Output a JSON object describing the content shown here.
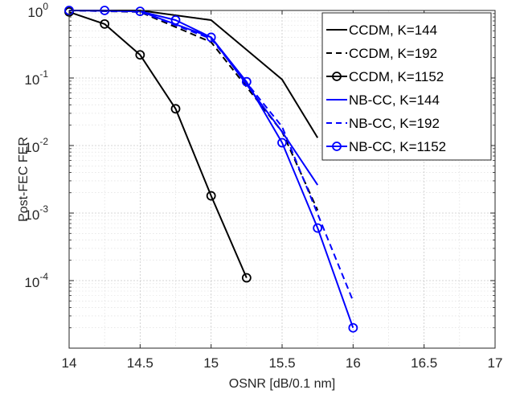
{
  "chart_data": {
    "type": "line",
    "title": "",
    "xlabel": "OSNR [dB/0.1 nm]",
    "ylabel": "Post-FEC FER",
    "xlim": [
      14,
      17
    ],
    "ylim": [
      1e-05,
      1
    ],
    "yscale": "log",
    "grid": true,
    "minor_grid": true,
    "legend_position": "top-right",
    "x_ticks": [
      "14",
      "14.5",
      "15",
      "15.5",
      "16",
      "16.5",
      "17"
    ],
    "x_tick_values": [
      14,
      14.5,
      15,
      15.5,
      16,
      16.5,
      17
    ],
    "y_ticks": [
      {
        "value": 1,
        "base": "10",
        "exp": "0"
      },
      {
        "value": 0.1,
        "base": "10",
        "exp": "-1"
      },
      {
        "value": 0.01,
        "base": "10",
        "exp": "-2"
      },
      {
        "value": 0.001,
        "base": "10",
        "exp": "-3"
      },
      {
        "value": 0.0001,
        "base": "10",
        "exp": "-4"
      }
    ],
    "series": [
      {
        "name": "CCDM, K=144",
        "color": "#000000",
        "dash": "solid",
        "marker": "none",
        "x": [
          14,
          14.5,
          15,
          15.5,
          15.75
        ],
        "y": [
          1.0,
          1.0,
          0.72,
          0.095,
          0.013
        ]
      },
      {
        "name": "CCDM, K=192",
        "color": "#000000",
        "dash": "dashed",
        "marker": "none",
        "x": [
          14,
          14.5,
          15,
          15.5,
          15.75
        ],
        "y": [
          1.0,
          0.95,
          0.34,
          0.016,
          0.0011
        ]
      },
      {
        "name": "CCDM, K=1152",
        "color": "#000000",
        "dash": "solid",
        "marker": "circle",
        "x": [
          14,
          14.25,
          14.5,
          14.75,
          15,
          15.25
        ],
        "y": [
          0.95,
          0.63,
          0.22,
          0.035,
          0.0018,
          0.00011
        ]
      },
      {
        "name": "NB-CC, K=144",
        "color": "#0000ff",
        "dash": "solid",
        "marker": "none",
        "x": [
          14,
          14.5,
          15,
          15.5,
          15.75
        ],
        "y": [
          1.0,
          0.97,
          0.4,
          0.016,
          0.0026
        ]
      },
      {
        "name": "NB-CC, K=192",
        "color": "#0000ff",
        "dash": "dashed",
        "marker": "none",
        "x": [
          14,
          14.5,
          15,
          15.5,
          16
        ],
        "y": [
          1.0,
          0.96,
          0.38,
          0.019,
          5e-05
        ]
      },
      {
        "name": "NB-CC, K=1152",
        "color": "#0000ff",
        "dash": "solid",
        "marker": "circle",
        "x": [
          14,
          14.25,
          14.5,
          14.75,
          15,
          15.25,
          15.5,
          15.75,
          16
        ],
        "y": [
          1.0,
          1.0,
          0.97,
          0.72,
          0.4,
          0.088,
          0.011,
          0.0006,
          2e-05
        ]
      }
    ]
  }
}
